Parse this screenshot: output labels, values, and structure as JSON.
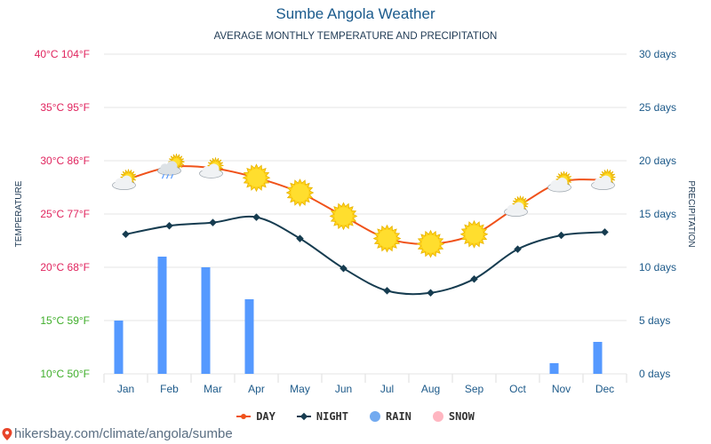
{
  "header": {
    "title": "Sumbe Angola Weather",
    "subtitle": "AVERAGE MONTHLY TEMPERATURE AND PRECIPITATION"
  },
  "legend": {
    "day": "DAY",
    "night": "NIGHT",
    "rain": "RAIN",
    "snow": "SNOW"
  },
  "footer": {
    "source": "hikersbay.com/climate/angola/sumbe"
  },
  "colors": {
    "day": "#f0521a",
    "night": "#163c50",
    "rain": "#5599ff",
    "snow": "#ffb6c1",
    "right_axis": "#1d5a8a"
  },
  "chart_data": {
    "type": "line",
    "categories": [
      "Jan",
      "Feb",
      "Mar",
      "Apr",
      "May",
      "Jun",
      "Jul",
      "Aug",
      "Sep",
      "Oct",
      "Nov",
      "Dec"
    ],
    "series": [
      {
        "name": "DAY",
        "values": [
          28.2,
          29.4,
          29.3,
          28.4,
          27.0,
          24.8,
          22.7,
          22.2,
          23.1,
          25.7,
          28.0,
          28.2
        ]
      },
      {
        "name": "NIGHT",
        "values": [
          23.1,
          23.9,
          24.2,
          24.7,
          22.7,
          19.9,
          17.8,
          17.6,
          18.9,
          21.7,
          23.0,
          23.3
        ]
      }
    ],
    "precipitation": {
      "name": "RAIN",
      "values": [
        5,
        11,
        10,
        7,
        0,
        0,
        0,
        0,
        0,
        0,
        1,
        3
      ]
    },
    "weather_icons": [
      "partly-cloudy",
      "cloudy-rain",
      "partly-cloudy",
      "sunny",
      "sunny",
      "sunny",
      "sunny",
      "sunny",
      "sunny",
      "partly-cloudy",
      "partly-cloudy",
      "partly-cloudy"
    ],
    "y_left": {
      "label": "TEMPERATURE",
      "range": [
        10,
        40
      ],
      "ticks": [
        "40°C 104°F",
        "35°C 95°F",
        "30°C 86°F",
        "25°C 77°F",
        "20°C 68°F",
        "15°C 59°F",
        "10°C 50°F"
      ],
      "tick_colors": [
        "#e0245e",
        "#e0245e",
        "#e0245e",
        "#e0245e",
        "#e0245e",
        "#3fae2a",
        "#3fae2a"
      ]
    },
    "y_right": {
      "label": "PRECIPITATION",
      "range": [
        0,
        30
      ],
      "ticks": [
        "30 days",
        "25 days",
        "20 days",
        "15 days",
        "10 days",
        "5 days",
        "0 days"
      ]
    },
    "grid": true,
    "legend_position": "bottom"
  }
}
